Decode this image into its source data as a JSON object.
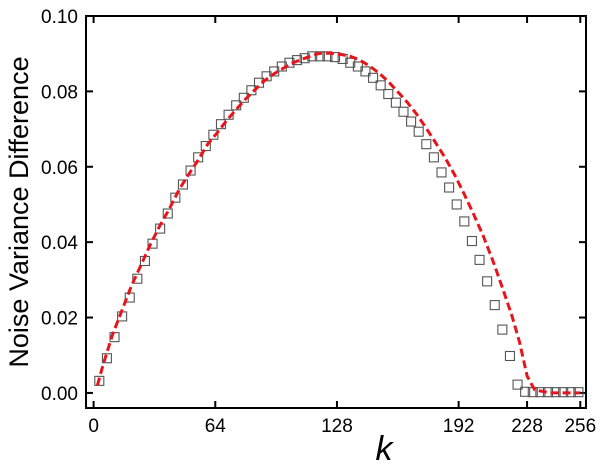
{
  "chart_data": {
    "type": "scatter",
    "title": "",
    "xlabel": "k",
    "ylabel": "Noise Variance Difference",
    "xlim": [
      -4,
      259
    ],
    "ylim": [
      -0.004,
      0.1
    ],
    "x_ticks": [
      0,
      64,
      128,
      192,
      228,
      256
    ],
    "x_tick_labels": [
      "0",
      "64",
      "128",
      "192",
      "228",
      "256"
    ],
    "y_ticks": [
      0.0,
      0.02,
      0.04,
      0.06,
      0.08,
      0.1
    ],
    "y_tick_labels": [
      "0.00",
      "0.02",
      "0.04",
      "0.06",
      "0.08",
      "0.10"
    ],
    "grid": false,
    "legend": "none",
    "series": [
      {
        "style": "open-square-markers",
        "color": "#555555",
        "x": [
          3,
          7,
          11,
          15,
          19,
          23,
          27,
          31,
          35,
          39,
          43,
          47,
          51,
          55,
          59,
          63,
          67,
          71,
          75,
          79,
          83,
          87,
          91,
          95,
          99,
          103,
          107,
          111,
          115,
          119,
          123,
          127,
          131,
          135,
          139,
          143,
          147,
          151,
          155,
          159,
          163,
          167,
          171,
          175,
          179,
          183,
          187,
          191,
          195,
          199,
          203,
          207,
          211,
          215,
          219,
          223,
          227,
          231,
          235,
          239,
          243,
          247,
          251,
          255
        ],
        "y": [
          0.0032,
          0.0092,
          0.0148,
          0.0203,
          0.0253,
          0.0303,
          0.035,
          0.0396,
          0.0436,
          0.0476,
          0.0518,
          0.0553,
          0.059,
          0.0625,
          0.0655,
          0.0685,
          0.0713,
          0.0738,
          0.0763,
          0.0783,
          0.0803,
          0.0823,
          0.084,
          0.0853,
          0.0866,
          0.0876,
          0.0883,
          0.0888,
          0.0893,
          0.0893,
          0.0893,
          0.0891,
          0.0886,
          0.0876,
          0.0866,
          0.0853,
          0.0836,
          0.0816,
          0.0793,
          0.077,
          0.0746,
          0.072,
          0.0693,
          0.066,
          0.0625,
          0.0585,
          0.0545,
          0.05,
          0.0455,
          0.0403,
          0.0353,
          0.0296,
          0.0233,
          0.0168,
          0.0098,
          0.0022,
          0.0003,
          0.0002,
          0.0002,
          0.0002,
          0.0002,
          0.0002,
          0.0002,
          0.0002
        ]
      },
      {
        "style": "dashed-line",
        "color": "#e8141b",
        "x": [
          2,
          5,
          10,
          15,
          20,
          25,
          30,
          35,
          40,
          45,
          50,
          55,
          60,
          65,
          70,
          75,
          80,
          85,
          90,
          95,
          100,
          105,
          110,
          115,
          118,
          120,
          125,
          130,
          135,
          140,
          145,
          150,
          155,
          160,
          165,
          170,
          175,
          180,
          185,
          190,
          195,
          200,
          205,
          210,
          215,
          220,
          224,
          226,
          228,
          232,
          240,
          248,
          256
        ],
        "y": [
          0.002,
          0.0075,
          0.0155,
          0.022,
          0.0285,
          0.034,
          0.0395,
          0.0445,
          0.049,
          0.054,
          0.058,
          0.0618,
          0.066,
          0.069,
          0.0723,
          0.0752,
          0.078,
          0.0805,
          0.0829,
          0.0847,
          0.0862,
          0.0876,
          0.0886,
          0.0895,
          0.09,
          0.0901,
          0.0901,
          0.0898,
          0.0893,
          0.0883,
          0.0868,
          0.0849,
          0.0826,
          0.0799,
          0.0771,
          0.0739,
          0.0702,
          0.0663,
          0.0623,
          0.0578,
          0.0527,
          0.0473,
          0.0416,
          0.0351,
          0.028,
          0.0205,
          0.0135,
          0.009,
          0.0045,
          0.0008,
          0.0,
          0.0,
          0.0
        ]
      }
    ]
  }
}
